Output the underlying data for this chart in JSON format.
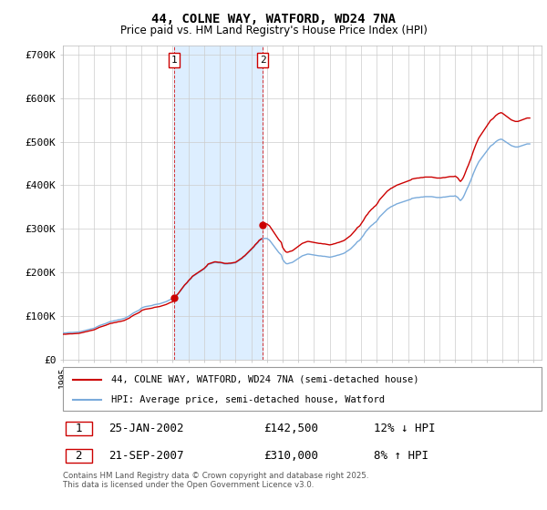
{
  "title": "44, COLNE WAY, WATFORD, WD24 7NA",
  "subtitle": "Price paid vs. HM Land Registry's House Price Index (HPI)",
  "ylim": [
    0,
    720000
  ],
  "yticks": [
    0,
    100000,
    200000,
    300000,
    400000,
    500000,
    600000,
    700000
  ],
  "ytick_labels": [
    "£0",
    "£100K",
    "£200K",
    "£300K",
    "£400K",
    "£500K",
    "£600K",
    "£700K"
  ],
  "hpi_color": "#7aabdb",
  "price_color": "#cc0000",
  "shade_color": "#ddeeff",
  "background_color": "#ffffff",
  "grid_color": "#cccccc",
  "annotation1": {
    "num": "1",
    "date": "25-JAN-2002",
    "price": "£142,500",
    "hpi": "12% ↓ HPI"
  },
  "annotation2": {
    "num": "2",
    "date": "21-SEP-2007",
    "price": "£310,000",
    "hpi": "8% ↑ HPI"
  },
  "legend1": "44, COLNE WAY, WATFORD, WD24 7NA (semi-detached house)",
  "legend2": "HPI: Average price, semi-detached house, Watford",
  "footer": "Contains HM Land Registry data © Crown copyright and database right 2025.\nThis data is licensed under the Open Government Licence v3.0.",
  "t1": 2002.07,
  "t2": 2007.73,
  "p1": 142500,
  "p2": 310000,
  "p0": 58000,
  "t0": 1995.0,
  "xlim_start": 1995.0,
  "xlim_end": 2025.5,
  "hpi_monthly": {
    "dates": [
      1995.0,
      1995.083,
      1995.167,
      1995.25,
      1995.333,
      1995.417,
      1995.5,
      1995.583,
      1995.667,
      1995.75,
      1995.833,
      1995.917,
      1996.0,
      1996.083,
      1996.167,
      1996.25,
      1996.333,
      1996.417,
      1996.5,
      1996.583,
      1996.667,
      1996.75,
      1996.833,
      1996.917,
      1997.0,
      1997.083,
      1997.167,
      1997.25,
      1997.333,
      1997.417,
      1997.5,
      1997.583,
      1997.667,
      1997.75,
      1997.833,
      1997.917,
      1998.0,
      1998.083,
      1998.167,
      1998.25,
      1998.333,
      1998.417,
      1998.5,
      1998.583,
      1998.667,
      1998.75,
      1998.833,
      1998.917,
      1999.0,
      1999.083,
      1999.167,
      1999.25,
      1999.333,
      1999.417,
      1999.5,
      1999.583,
      1999.667,
      1999.75,
      1999.833,
      1999.917,
      2000.0,
      2000.083,
      2000.167,
      2000.25,
      2000.333,
      2000.417,
      2000.5,
      2000.583,
      2000.667,
      2000.75,
      2000.833,
      2000.917,
      2001.0,
      2001.083,
      2001.167,
      2001.25,
      2001.333,
      2001.417,
      2001.5,
      2001.583,
      2001.667,
      2001.75,
      2001.833,
      2001.917,
      2002.0,
      2002.083,
      2002.167,
      2002.25,
      2002.333,
      2002.417,
      2002.5,
      2002.583,
      2002.667,
      2002.75,
      2002.833,
      2002.917,
      2003.0,
      2003.083,
      2003.167,
      2003.25,
      2003.333,
      2003.417,
      2003.5,
      2003.583,
      2003.667,
      2003.75,
      2003.833,
      2003.917,
      2004.0,
      2004.083,
      2004.167,
      2004.25,
      2004.333,
      2004.417,
      2004.5,
      2004.583,
      2004.667,
      2004.75,
      2004.833,
      2004.917,
      2005.0,
      2005.083,
      2005.167,
      2005.25,
      2005.333,
      2005.417,
      2005.5,
      2005.583,
      2005.667,
      2005.75,
      2005.833,
      2005.917,
      2006.0,
      2006.083,
      2006.167,
      2006.25,
      2006.333,
      2006.417,
      2006.5,
      2006.583,
      2006.667,
      2006.75,
      2006.833,
      2006.917,
      2007.0,
      2007.083,
      2007.167,
      2007.25,
      2007.333,
      2007.417,
      2007.5,
      2007.583,
      2007.667,
      2007.75,
      2007.833,
      2007.917,
      2008.0,
      2008.083,
      2008.167,
      2008.25,
      2008.333,
      2008.417,
      2008.5,
      2008.583,
      2008.667,
      2008.75,
      2008.833,
      2008.917,
      2009.0,
      2009.083,
      2009.167,
      2009.25,
      2009.333,
      2009.417,
      2009.5,
      2009.583,
      2009.667,
      2009.75,
      2009.833,
      2009.917,
      2010.0,
      2010.083,
      2010.167,
      2010.25,
      2010.333,
      2010.417,
      2010.5,
      2010.583,
      2010.667,
      2010.75,
      2010.833,
      2010.917,
      2011.0,
      2011.083,
      2011.167,
      2011.25,
      2011.333,
      2011.417,
      2011.5,
      2011.583,
      2011.667,
      2011.75,
      2011.833,
      2011.917,
      2012.0,
      2012.083,
      2012.167,
      2012.25,
      2012.333,
      2012.417,
      2012.5,
      2012.583,
      2012.667,
      2012.75,
      2012.833,
      2012.917,
      2013.0,
      2013.083,
      2013.167,
      2013.25,
      2013.333,
      2013.417,
      2013.5,
      2013.583,
      2013.667,
      2013.75,
      2013.833,
      2013.917,
      2014.0,
      2014.083,
      2014.167,
      2014.25,
      2014.333,
      2014.417,
      2014.5,
      2014.583,
      2014.667,
      2014.75,
      2014.833,
      2014.917,
      2015.0,
      2015.083,
      2015.167,
      2015.25,
      2015.333,
      2015.417,
      2015.5,
      2015.583,
      2015.667,
      2015.75,
      2015.833,
      2015.917,
      2016.0,
      2016.083,
      2016.167,
      2016.25,
      2016.333,
      2016.417,
      2016.5,
      2016.583,
      2016.667,
      2016.75,
      2016.833,
      2016.917,
      2017.0,
      2017.083,
      2017.167,
      2017.25,
      2017.333,
      2017.417,
      2017.5,
      2017.583,
      2017.667,
      2017.75,
      2017.833,
      2017.917,
      2018.0,
      2018.083,
      2018.167,
      2018.25,
      2018.333,
      2018.417,
      2018.5,
      2018.583,
      2018.667,
      2018.75,
      2018.833,
      2018.917,
      2019.0,
      2019.083,
      2019.167,
      2019.25,
      2019.333,
      2019.417,
      2019.5,
      2019.583,
      2019.667,
      2019.75,
      2019.833,
      2019.917,
      2020.0,
      2020.083,
      2020.167,
      2020.25,
      2020.333,
      2020.417,
      2020.5,
      2020.583,
      2020.667,
      2020.75,
      2020.833,
      2020.917,
      2021.0,
      2021.083,
      2021.167,
      2021.25,
      2021.333,
      2021.417,
      2021.5,
      2021.583,
      2021.667,
      2021.75,
      2021.833,
      2021.917,
      2022.0,
      2022.083,
      2022.167,
      2022.25,
      2022.333,
      2022.417,
      2022.5,
      2022.583,
      2022.667,
      2022.75,
      2022.833,
      2022.917,
      2023.0,
      2023.083,
      2023.167,
      2023.25,
      2023.333,
      2023.417,
      2023.5,
      2023.583,
      2023.667,
      2023.75,
      2023.833,
      2023.917,
      2024.0,
      2024.083,
      2024.167,
      2024.25,
      2024.333,
      2024.417,
      2024.5,
      2024.583,
      2024.667,
      2024.75
    ],
    "values": [
      61000,
      61200,
      61100,
      61500,
      61800,
      62000,
      62200,
      62100,
      62400,
      62600,
      62800,
      63000,
      63200,
      63800,
      64500,
      65200,
      66000,
      66800,
      67500,
      68200,
      69000,
      69800,
      70500,
      71200,
      72000,
      73500,
      75000,
      76500,
      78000,
      79000,
      80000,
      81000,
      82000,
      83000,
      84500,
      85500,
      87000,
      87500,
      88000,
      89000,
      89500,
      90000,
      91000,
      91500,
      92000,
      92800,
      93500,
      94500,
      96000,
      97500,
      99000,
      100500,
      103000,
      105000,
      107000,
      108500,
      110000,
      111500,
      113000,
      115000,
      118000,
      119500,
      120500,
      121500,
      122000,
      122500,
      123000,
      123500,
      124000,
      125000,
      126000,
      126500,
      127000,
      127500,
      128000,
      129000,
      130000,
      131000,
      132000,
      133000,
      134500,
      136000,
      137500,
      138500,
      140000,
      142000,
      144000,
      147000,
      150000,
      154000,
      158000,
      162000,
      166000,
      170000,
      173000,
      176000,
      180000,
      183000,
      186000,
      190000,
      192000,
      194000,
      196000,
      198000,
      200000,
      202000,
      204000,
      206000,
      208000,
      211000,
      214000,
      218000,
      219000,
      220000,
      221000,
      222000,
      223000,
      223000,
      222500,
      222000,
      222000,
      221500,
      221000,
      220000,
      219500,
      219500,
      219500,
      220000,
      220000,
      220500,
      221000,
      221500,
      222000,
      224000,
      226000,
      228000,
      230000,
      232000,
      235000,
      237000,
      240000,
      243000,
      246000,
      249000,
      252000,
      255000,
      258000,
      262000,
      265000,
      268000,
      272000,
      274000,
      276000,
      277000,
      278000,
      278000,
      278000,
      276000,
      274000,
      270000,
      266000,
      262000,
      258000,
      254000,
      250000,
      246000,
      243000,
      240000,
      230000,
      226000,
      222000,
      220000,
      220000,
      221000,
      222000,
      222500,
      224000,
      226000,
      228000,
      230000,
      232000,
      234000,
      236000,
      238000,
      239000,
      240000,
      241000,
      242000,
      242000,
      241500,
      241000,
      240500,
      240000,
      239500,
      239000,
      238500,
      238000,
      238000,
      237500,
      237000,
      237000,
      236500,
      236000,
      235500,
      235000,
      235500,
      236000,
      237000,
      237500,
      238500,
      239500,
      240000,
      241000,
      242000,
      243000,
      244000,
      246000,
      248000,
      250000,
      252000,
      254000,
      257000,
      260000,
      263000,
      266000,
      270000,
      272000,
      274000,
      278000,
      282000,
      286000,
      291000,
      295000,
      298000,
      302000,
      305000,
      308000,
      310000,
      313000,
      315000,
      318000,
      322000,
      327000,
      330000,
      333000,
      336000,
      339000,
      342000,
      345000,
      347000,
      349000,
      351000,
      352000,
      354000,
      355000,
      357000,
      358000,
      359000,
      360000,
      361000,
      362000,
      363000,
      364000,
      365000,
      366000,
      367000,
      368000,
      370000,
      370500,
      371000,
      371500,
      372000,
      372000,
      372500,
      373000,
      373000,
      373500,
      374000,
      374000,
      374000,
      374000,
      374000,
      374000,
      373500,
      373000,
      372500,
      372000,
      372000,
      372000,
      372000,
      372500,
      373000,
      373000,
      373500,
      374000,
      374500,
      375000,
      375000,
      375000,
      375000,
      376000,
      374000,
      372000,
      368000,
      365000,
      368000,
      372000,
      378000,
      385000,
      392000,
      398000,
      405000,
      412000,
      420000,
      428000,
      435000,
      442000,
      448000,
      454000,
      458000,
      462000,
      466000,
      470000,
      474000,
      478000,
      482000,
      486000,
      490000,
      492000,
      494000,
      497000,
      500000,
      502000,
      504000,
      505000,
      506000,
      505000,
      503000,
      501000,
      499000,
      497000,
      495000,
      493000,
      491000,
      490000,
      489000,
      488000,
      488000,
      488000,
      489000,
      490000,
      491000,
      492000,
      493000,
      494000,
      495000,
      495000,
      495000
    ]
  }
}
